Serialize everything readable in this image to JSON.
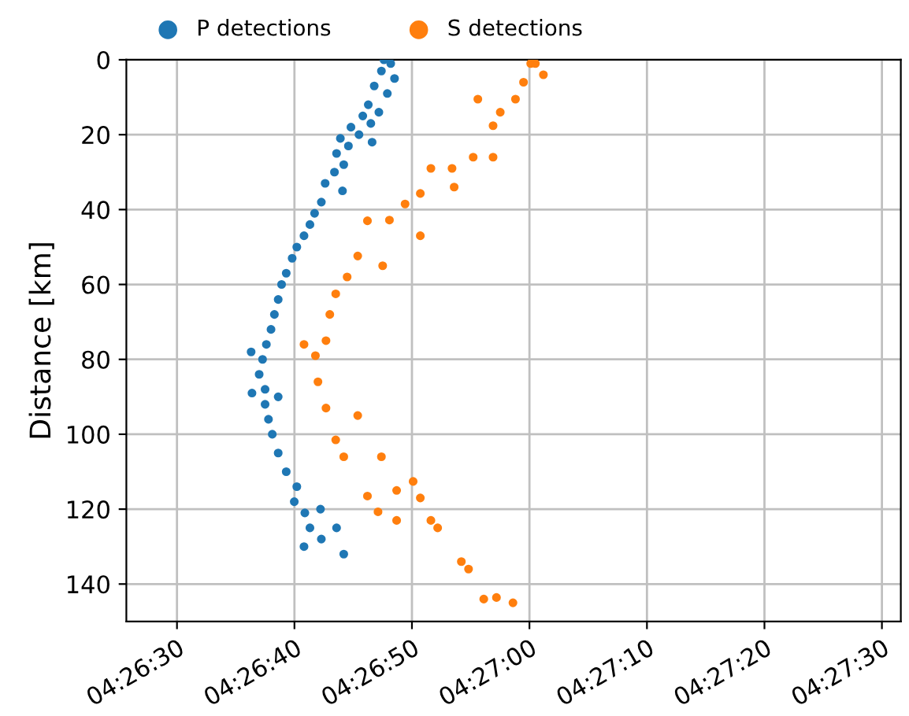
{
  "chart_data": {
    "type": "scatter",
    "ylabel": "Distance [km]",
    "marker": "circle",
    "grid": true,
    "legend": "top",
    "xlim": [
      4.44047,
      4.45878
    ],
    "ylim": [
      150,
      0
    ],
    "yticks": [
      0,
      20,
      40,
      60,
      80,
      100,
      120,
      140
    ],
    "xticks": [
      {
        "value": 4.441667,
        "label": "04:26:30"
      },
      {
        "value": 4.444444,
        "label": "04:26:40"
      },
      {
        "value": 4.447222,
        "label": "04:26:50"
      },
      {
        "value": 4.45,
        "label": "04:27:00"
      },
      {
        "value": 4.452778,
        "label": "04:27:10"
      },
      {
        "value": 4.455556,
        "label": "04:27:20"
      },
      {
        "value": 4.458333,
        "label": "04:27:30"
      }
    ],
    "series": [
      {
        "name": "P detections",
        "color": "#1f77b4",
        "x": [
          4.44656,
          4.44672,
          4.4465,
          4.44681,
          4.44633,
          4.44664,
          4.44619,
          4.44644,
          4.44606,
          4.44625,
          4.44578,
          4.44597,
          4.44553,
          4.44572,
          4.44628,
          4.44544,
          4.44561,
          4.44539,
          4.44517,
          4.44558,
          4.44508,
          4.44492,
          4.44481,
          4.44467,
          4.4445,
          4.44439,
          4.44425,
          4.44414,
          4.44406,
          4.44397,
          4.44389,
          4.44378,
          4.44369,
          4.44342,
          4.44361,
          4.44344,
          4.44375,
          4.44375,
          4.44406,
          4.44383,
          4.44392,
          4.44406,
          4.44425,
          4.4445,
          4.44444,
          4.44469,
          4.44506,
          4.44481,
          4.44544,
          4.44508,
          4.44467,
          4.44561
        ],
        "values": [
          0,
          1,
          3,
          5,
          7,
          9,
          12,
          14,
          15,
          17,
          18,
          20,
          21,
          23,
          22,
          25,
          28,
          30,
          33,
          35,
          38,
          41,
          44,
          47,
          50,
          53,
          57,
          60,
          64,
          68,
          72,
          76,
          80,
          78,
          84,
          89,
          88,
          92,
          90,
          96,
          100,
          105,
          110,
          114,
          118,
          121,
          120,
          125,
          125,
          128,
          130,
          132
        ]
      },
      {
        "name": "S detections",
        "color": "#ff7f0e",
        "x": [
          4.45003,
          4.45014,
          4.45033,
          4.44986,
          4.44967,
          4.44878,
          4.44931,
          4.44914,
          4.44867,
          4.44914,
          4.44817,
          4.44767,
          4.44822,
          4.44742,
          4.44706,
          4.44669,
          4.44617,
          4.44742,
          4.44594,
          4.44653,
          4.44569,
          4.44542,
          4.44528,
          4.44519,
          4.44467,
          4.44494,
          4.445,
          4.44519,
          4.44594,
          4.44542,
          4.44561,
          4.4465,
          4.44725,
          4.44686,
          4.44617,
          4.44742,
          4.44642,
          4.44767,
          4.44686,
          4.44783,
          4.44839,
          4.44856,
          4.44922,
          4.44892,
          4.44961
        ],
        "values": [
          1,
          1,
          4,
          6,
          10.5,
          10.5,
          14,
          17.6,
          26,
          26,
          29,
          29,
          34,
          35.7,
          38.5,
          42.8,
          43,
          47,
          52.4,
          55,
          58,
          62.5,
          68,
          75,
          76,
          79,
          86,
          93,
          95,
          101.5,
          106,
          106,
          112.6,
          115,
          116.5,
          117,
          120.7,
          123,
          123,
          125,
          134,
          136,
          143.6,
          144,
          145
        ]
      }
    ]
  }
}
